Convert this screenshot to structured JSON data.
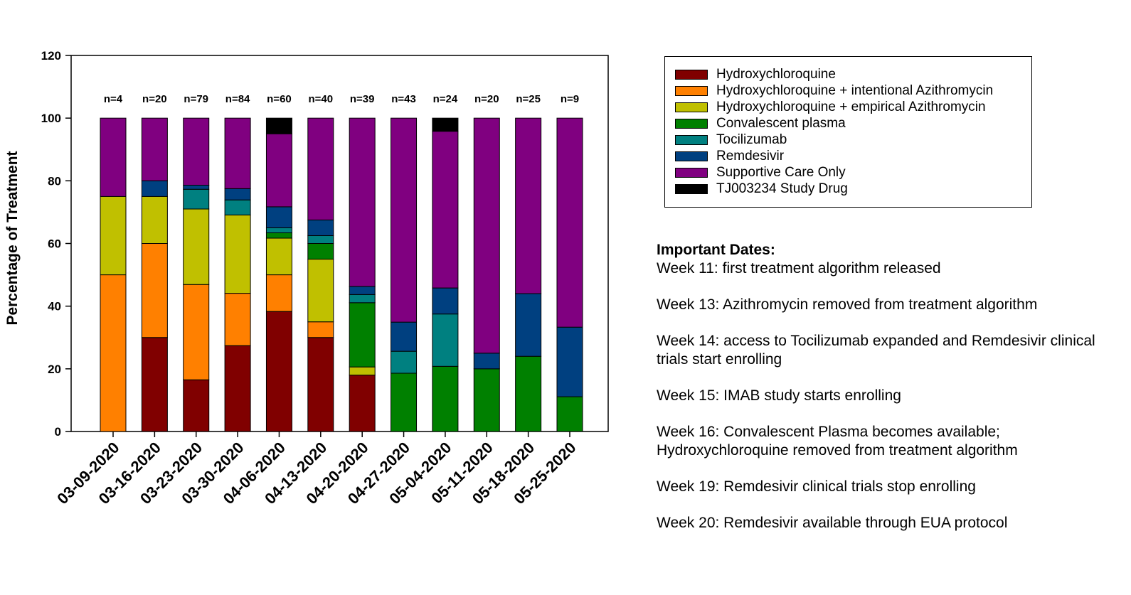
{
  "chart_data": {
    "type": "bar",
    "stacked": true,
    "ylabel": "Percentage of Treatment",
    "xlabel": "",
    "ylim": [
      0,
      120
    ],
    "yticks": [
      0,
      20,
      40,
      60,
      80,
      100,
      120
    ],
    "categories": [
      "03-09-2020",
      "03-16-2020",
      "03-23-2020",
      "03-30-2020",
      "04-06-2020",
      "04-13-2020",
      "04-20-2020",
      "04-27-2020",
      "05-04-2020",
      "05-11-2020",
      "05-18-2020",
      "05-25-2020"
    ],
    "n_labels": [
      "n=4",
      "n=20",
      "n=79",
      "n=84",
      "n=60",
      "n=40",
      "n=39",
      "n=43",
      "n=24",
      "n=20",
      "n=25",
      "n=9"
    ],
    "series": [
      {
        "name": "Hydroxychloroquine",
        "color": "#800000",
        "values": [
          0,
          30,
          16.5,
          27.4,
          38.3,
          30,
          18,
          0,
          0,
          0,
          0,
          0
        ]
      },
      {
        "name": "Hydroxychloroquine + intentional Azithromycin",
        "color": "#ff8000",
        "values": [
          50,
          30,
          30.4,
          16.7,
          11.7,
          5,
          0,
          0,
          0,
          0,
          0,
          0
        ]
      },
      {
        "name": "Hydroxychloroquine + empirical Azithromycin",
        "color": "#c0c000",
        "values": [
          25,
          15,
          24.1,
          25,
          11.7,
          20,
          2.6,
          0,
          0,
          0,
          0,
          0
        ]
      },
      {
        "name": "Convalescent plasma",
        "color": "#008000",
        "values": [
          0,
          0,
          0,
          0,
          1.7,
          5,
          20.5,
          18.6,
          20.8,
          20,
          24,
          11.1
        ]
      },
      {
        "name": "Tocilizumab",
        "color": "#008080",
        "values": [
          0,
          0,
          6.3,
          4.8,
          1.6,
          2.5,
          2.6,
          7,
          16.7,
          0,
          0,
          0
        ]
      },
      {
        "name": "Remdesivir",
        "color": "#004080",
        "values": [
          0,
          5,
          1.3,
          3.6,
          6.7,
          5,
          2.6,
          9.3,
          8.3,
          5,
          20,
          22.2
        ]
      },
      {
        "name": "Supportive Care Only",
        "color": "#800080",
        "values": [
          25,
          20,
          21.4,
          22.5,
          23.3,
          32.5,
          53.7,
          65.1,
          50,
          75,
          56,
          66.7
        ]
      },
      {
        "name": "TJ003234 Study Drug",
        "color": "#000000",
        "values": [
          0,
          0,
          0,
          0,
          5,
          0,
          0,
          0,
          4.2,
          0,
          0,
          0
        ]
      }
    ]
  },
  "legend": {
    "items": [
      "Hydroxychloroquine",
      "Hydroxychloroquine + intentional Azithromycin",
      "Hydroxychloroquine + empirical Azithromycin",
      "Convalescent plasma",
      "Tocilizumab",
      "Remdesivir",
      "Supportive Care Only",
      "TJ003234 Study Drug"
    ]
  },
  "important_dates": {
    "title": "Important Dates:",
    "items": [
      "Week 11: first treatment algorithm released",
      "Week 13:  Azithromycin removed from treatment algorithm",
      "Week 14:  access to Tocilizumab expanded and Remdesivir clinical trials start enrolling",
      "Week 15:  IMAB study starts enrolling",
      "Week 16:  Convalescent Plasma becomes available; Hydroxychloroquine removed from treatment algorithm",
      "Week 19:  Remdesivir clinical trials stop enrolling",
      "Week 20:  Remdesivir available through EUA protocol"
    ]
  }
}
